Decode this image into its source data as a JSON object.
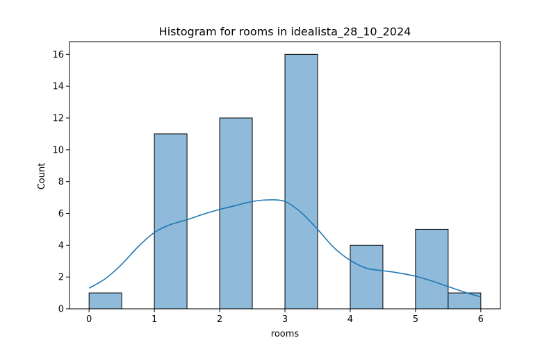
{
  "chart_data": {
    "type": "bar",
    "title": "Histogram for rooms in idealista_28_10_2024",
    "xlabel": "rooms",
    "ylabel": "Count",
    "xlim": [
      -0.3,
      6.3
    ],
    "ylim": [
      0,
      16.8
    ],
    "xticks": [
      0,
      1,
      2,
      3,
      4,
      5,
      6
    ],
    "yticks": [
      0,
      2,
      4,
      6,
      8,
      10,
      12,
      14,
      16
    ],
    "grid": false,
    "legend": "none",
    "bins": [
      {
        "start": 0.0,
        "end": 0.5,
        "count": 1
      },
      {
        "start": 0.5,
        "end": 1.0,
        "count": 0
      },
      {
        "start": 1.0,
        "end": 1.5,
        "count": 11
      },
      {
        "start": 1.5,
        "end": 2.0,
        "count": 0
      },
      {
        "start": 2.0,
        "end": 2.5,
        "count": 12
      },
      {
        "start": 2.5,
        "end": 3.0,
        "count": 0
      },
      {
        "start": 3.0,
        "end": 3.5,
        "count": 16
      },
      {
        "start": 3.5,
        "end": 4.0,
        "count": 0
      },
      {
        "start": 4.0,
        "end": 4.5,
        "count": 4
      },
      {
        "start": 4.5,
        "end": 5.0,
        "count": 0
      },
      {
        "start": 5.0,
        "end": 5.5,
        "count": 5
      },
      {
        "start": 5.5,
        "end": 6.0,
        "count": 1
      }
    ],
    "kde": {
      "x": [
        0.0,
        0.25,
        0.5,
        0.75,
        1.0,
        1.25,
        1.5,
        1.75,
        2.0,
        2.25,
        2.5,
        2.75,
        3.0,
        3.25,
        3.5,
        3.75,
        4.0,
        4.25,
        4.5,
        4.75,
        5.0,
        5.25,
        5.5,
        5.75,
        6.0
      ],
      "y": [
        1.3,
        1.9,
        2.8,
        3.9,
        4.8,
        5.3,
        5.6,
        5.95,
        6.25,
        6.5,
        6.75,
        6.85,
        6.75,
        6.05,
        5.0,
        3.85,
        3.05,
        2.55,
        2.4,
        2.25,
        2.05,
        1.75,
        1.4,
        1.05,
        0.75
      ]
    },
    "colors": {
      "bar_fill": "#8fbad9",
      "bar_edge": "#000000",
      "kde_line": "#1f77b4"
    }
  }
}
